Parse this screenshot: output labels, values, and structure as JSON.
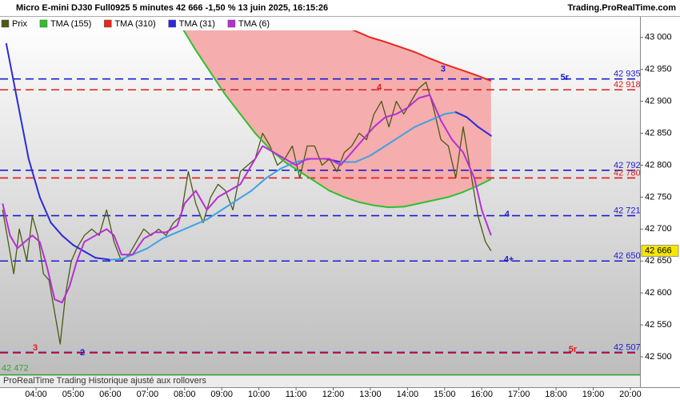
{
  "chart_data": {
    "type": "line",
    "title": "Micro E-mini DJ30 Full0925 5 minutes 42 666 -1,50 % 13 juin 2025, 16:15:26",
    "source": "Trading.ProRealTime.com",
    "footer": "ProRealTime Trading  Historique ajusté aux rollovers",
    "xlim": [
      3.03,
      20.26
    ],
    "ylim": [
      42470,
      43031
    ],
    "xticks": [
      {
        "value": 4,
        "label": "04:00"
      },
      {
        "value": 5,
        "label": "05:00"
      },
      {
        "value": 6,
        "label": "06:00"
      },
      {
        "value": 7,
        "label": "07:00"
      },
      {
        "value": 8,
        "label": "08:00"
      },
      {
        "value": 9,
        "label": "09:00"
      },
      {
        "value": 10,
        "label": "10:00"
      },
      {
        "value": 11,
        "label": "11:00"
      },
      {
        "value": 12,
        "label": "12:00"
      },
      {
        "value": 13,
        "label": "13:00"
      },
      {
        "value": 14,
        "label": "14:00"
      },
      {
        "value": 15,
        "label": "15:00"
      },
      {
        "value": 16,
        "label": "16:00"
      },
      {
        "value": 17,
        "label": "17:00"
      },
      {
        "value": 18,
        "label": "18:00"
      },
      {
        "value": 19,
        "label": "19:00"
      },
      {
        "value": 20,
        "label": "20:00"
      }
    ],
    "yticks": [
      {
        "value": 43000,
        "label": "43 000"
      },
      {
        "value": 42950,
        "label": "42 950"
      },
      {
        "value": 42900,
        "label": "42 900"
      },
      {
        "value": 42850,
        "label": "42 850"
      },
      {
        "value": 42800,
        "label": "42 800"
      },
      {
        "value": 42750,
        "label": "42 750"
      },
      {
        "value": 42700,
        "label": "42 700"
      },
      {
        "value": 42650,
        "label": "42 650"
      },
      {
        "value": 42600,
        "label": "42 600"
      },
      {
        "value": 42550,
        "label": "42 550"
      },
      {
        "value": 42500,
        "label": "42 500"
      }
    ],
    "area_fill": "#f5adad",
    "series": [
      {
        "name": "Prix",
        "color": "#4b5a12",
        "x": [
          3.1,
          3.25,
          3.4,
          3.55,
          3.75,
          3.9,
          4.05,
          4.2,
          4.35,
          4.5,
          4.65,
          4.8,
          4.95,
          5.1,
          5.3,
          5.5,
          5.7,
          5.9,
          6.1,
          6.3,
          6.5,
          6.7,
          6.9,
          7.1,
          7.3,
          7.5,
          7.7,
          7.9,
          8.1,
          8.3,
          8.5,
          8.7,
          8.9,
          9.1,
          9.3,
          9.5,
          9.7,
          9.9,
          10.1,
          10.3,
          10.5,
          10.7,
          10.9,
          11.1,
          11.3,
          11.5,
          11.7,
          11.9,
          12.1,
          12.3,
          12.5,
          12.7,
          12.9,
          13.1,
          13.3,
          13.5,
          13.7,
          13.9,
          14.1,
          14.3,
          14.5,
          14.7,
          14.9,
          15.1,
          15.3,
          15.5,
          15.7,
          15.9,
          16.1,
          16.25
        ],
        "values": [
          42730,
          42680,
          42630,
          42700,
          42650,
          42720,
          42690,
          42630,
          42620,
          42570,
          42520,
          42600,
          42650,
          42670,
          42690,
          42700,
          42690,
          42730,
          42680,
          42650,
          42660,
          42680,
          42700,
          42690,
          42700,
          42690,
          42710,
          42720,
          42790,
          42740,
          42710,
          42750,
          42770,
          42760,
          42730,
          42790,
          42800,
          42810,
          42850,
          42830,
          42800,
          42810,
          42830,
          42780,
          42830,
          42830,
          42800,
          42810,
          42790,
          42820,
          42830,
          42850,
          42840,
          42880,
          42900,
          42860,
          42900,
          42880,
          42900,
          42920,
          42930,
          42890,
          42840,
          42830,
          42780,
          42860,
          42790,
          42720,
          42680,
          42666
        ]
      },
      {
        "name": "TMA (155)",
        "color": "#2fbf2f",
        "x": [
          7.88,
          8.3,
          8.7,
          9.1,
          9.5,
          9.9,
          10.3,
          10.7,
          11.1,
          11.5,
          11.9,
          12.3,
          12.7,
          13.1,
          13.5,
          13.9,
          14.3,
          14.7,
          15.1,
          15.5,
          15.9,
          16.25
        ],
        "values": [
          43020,
          42980,
          42945,
          42910,
          42880,
          42850,
          42825,
          42805,
          42790,
          42775,
          42760,
          42750,
          42742,
          42737,
          42734,
          42735,
          42740,
          42745,
          42750,
          42758,
          42768,
          42778
        ]
      },
      {
        "name": "TMA (310)",
        "color": "#e8281e",
        "x": [
          12.18,
          12.6,
          13.0,
          13.4,
          13.8,
          14.2,
          14.6,
          15.0,
          15.4,
          15.8,
          16.25
        ],
        "values": [
          43020,
          43010,
          43000,
          42993,
          42985,
          42977,
          42967,
          42958,
          42950,
          42942,
          42932
        ]
      },
      {
        "name": "TMA (31)",
        "color": "#2b2bd8",
        "rising_color": "#3ea3e0",
        "x": [
          3.2,
          3.5,
          3.8,
          4.1,
          4.4,
          4.7,
          5.0,
          5.3,
          5.6,
          6.0,
          6.3,
          6.6,
          7.0,
          7.4,
          7.8,
          8.2,
          8.6,
          9.0,
          9.4,
          9.8,
          10.2,
          10.6,
          11.0,
          11.4,
          11.8,
          12.2,
          12.6,
          13.0,
          13.4,
          13.8,
          14.2,
          14.6,
          15.0,
          15.3,
          15.6,
          15.9,
          16.25
        ],
        "values": [
          42990,
          42900,
          42810,
          42750,
          42710,
          42690,
          42675,
          42665,
          42655,
          42652,
          42653,
          42660,
          42670,
          42685,
          42695,
          42705,
          42715,
          42730,
          42745,
          42760,
          42780,
          42795,
          42805,
          42810,
          42810,
          42805,
          42805,
          42815,
          42830,
          42845,
          42860,
          42870,
          42880,
          42883,
          42875,
          42860,
          42846
        ]
      },
      {
        "name": "TMA (6)",
        "color": "#b62fd6",
        "x": [
          3.1,
          3.3,
          3.5,
          3.7,
          3.9,
          4.1,
          4.3,
          4.5,
          4.7,
          4.9,
          5.1,
          5.3,
          5.6,
          5.9,
          6.1,
          6.3,
          6.6,
          6.9,
          7.2,
          7.5,
          7.8,
          8.0,
          8.3,
          8.6,
          8.9,
          9.2,
          9.5,
          9.8,
          10.1,
          10.4,
          10.7,
          11.0,
          11.3,
          11.6,
          11.9,
          12.2,
          12.5,
          12.8,
          13.1,
          13.4,
          13.7,
          14.0,
          14.3,
          14.6,
          14.9,
          15.2,
          15.5,
          15.8,
          16.0,
          16.25
        ],
        "values": [
          42740,
          42690,
          42670,
          42680,
          42690,
          42680,
          42640,
          42590,
          42585,
          42610,
          42650,
          42680,
          42690,
          42700,
          42690,
          42660,
          42660,
          42685,
          42695,
          42695,
          42705,
          42740,
          42760,
          42730,
          42750,
          42760,
          42770,
          42800,
          42830,
          42820,
          42810,
          42800,
          42810,
          42810,
          42810,
          42800,
          42820,
          42840,
          42860,
          42875,
          42880,
          42890,
          42905,
          42910,
          42870,
          42840,
          42820,
          42780,
          42730,
          42690
        ]
      }
    ],
    "levels": [
      {
        "value": 42935,
        "label": "42 935",
        "color": "#1c1cd0",
        "dashed": true
      },
      {
        "value": 42918,
        "label": "42 918",
        "color": "#e01a1a",
        "dashed": true
      },
      {
        "value": 42792,
        "label": "42 792",
        "color": "#1c1cd0",
        "dashed": true
      },
      {
        "value": 42780,
        "label": "42 780",
        "color": "#e01a1a",
        "dashed": true
      },
      {
        "value": 42721,
        "label": "42 721",
        "color": "#1c1cd0",
        "dashed": true
      },
      {
        "value": 42650,
        "label": "42 650",
        "color": "#1c1cd0",
        "dashed": true
      },
      {
        "value": 42507,
        "label": "42 507",
        "color": "#1c1cd0",
        "dashed": true
      },
      {
        "value": 42506,
        "color": "#e01a1a",
        "dashed": true
      },
      {
        "value": 42472,
        "label": "42 472",
        "color": "#2fa82f",
        "dashed": false
      }
    ],
    "last_price": {
      "value": 42666,
      "label": "42 666"
    },
    "annotations": [
      {
        "text": "5r",
        "x": 18.23,
        "y": 42937,
        "color": "#1c1cd0"
      },
      {
        "text": "4",
        "x": 13.24,
        "y": 42921,
        "color": "#e01a1a"
      },
      {
        "text": "3",
        "x": 14.96,
        "y": 42950,
        "color": "#1c1cd0"
      },
      {
        "text": "4",
        "x": 16.68,
        "y": 42723,
        "color": "#1c1cd0"
      },
      {
        "text": "4+",
        "x": 16.73,
        "y": 42652,
        "color": "#1c1cd0"
      },
      {
        "text": "3",
        "x": 3.98,
        "y": 42514,
        "color": "#e01a1a"
      },
      {
        "text": "2",
        "x": 5.25,
        "y": 42506,
        "color": "#1c1cd0"
      },
      {
        "text": "5r",
        "x": 18.45,
        "y": 42511,
        "color": "#e01a1a"
      }
    ]
  }
}
